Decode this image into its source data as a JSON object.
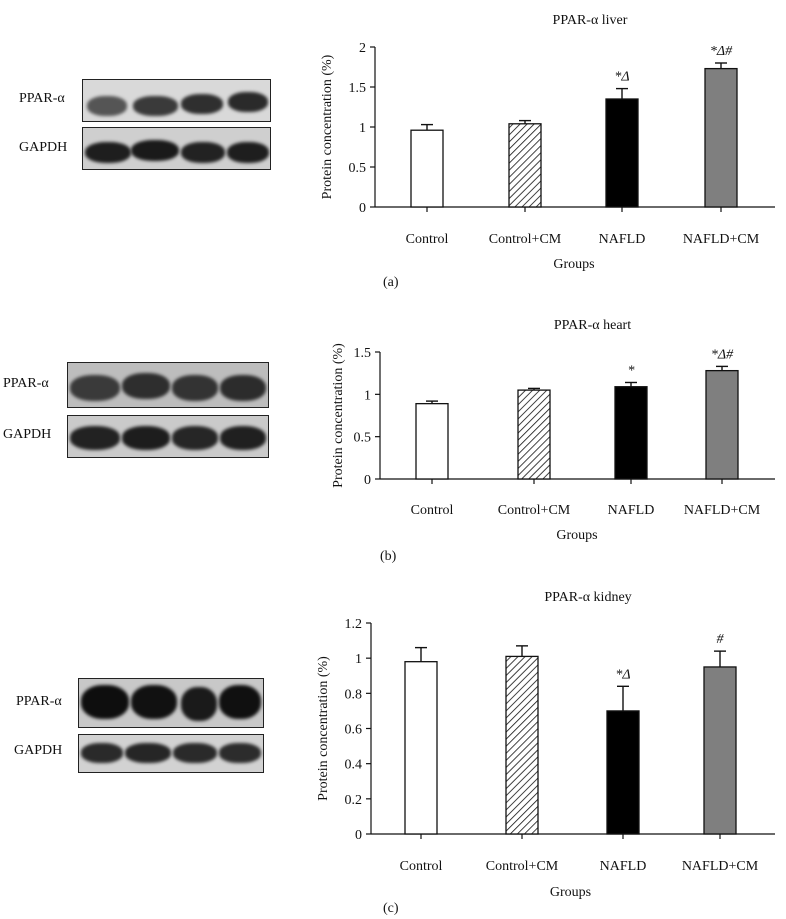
{
  "figure": {
    "panels": [
      {
        "letter": "(a)",
        "blot_labels": [
          "PPAR-α",
          "GAPDH"
        ],
        "chart_data": {
          "type": "bar",
          "title": "PPAR-α liver",
          "xlabel": "Groups",
          "ylabel": "Protein concentration (%)",
          "categories": [
            "Control",
            "Control+CM",
            "NAFLD",
            "NAFLD+CM"
          ],
          "values": [
            0.96,
            1.04,
            1.35,
            1.73
          ],
          "errors": [
            0.07,
            0.04,
            0.13,
            0.07
          ],
          "annotations": [
            "",
            "",
            "*Δ",
            "*Δ#"
          ],
          "ylim": [
            0,
            2
          ],
          "yticks": [
            0,
            0.5,
            1,
            1.5,
            2
          ],
          "ytick_labels": [
            "0",
            "0.5",
            "1",
            "1.5",
            "2"
          ],
          "bar_styles": [
            "white",
            "hatched",
            "black",
            "gray"
          ]
        }
      },
      {
        "letter": "(b)",
        "blot_labels": [
          "PPAR-α",
          "GAPDH"
        ],
        "chart_data": {
          "type": "bar",
          "title": "PPAR-α heart",
          "xlabel": "Groups",
          "ylabel": "Protein concentration (%)",
          "categories": [
            "Control",
            "Control+CM",
            "NAFLD",
            "NAFLD+CM"
          ],
          "values": [
            0.89,
            1.05,
            1.09,
            1.28
          ],
          "errors": [
            0.03,
            0.02,
            0.05,
            0.05
          ],
          "annotations": [
            "",
            "",
            "*",
            "*Δ#"
          ],
          "ylim": [
            0,
            1.5
          ],
          "yticks": [
            0,
            0.5,
            1,
            1.5
          ],
          "ytick_labels": [
            "0",
            "0.5",
            "1",
            "1.5"
          ],
          "bar_styles": [
            "white",
            "hatched",
            "black",
            "gray"
          ]
        }
      },
      {
        "letter": "(c)",
        "blot_labels": [
          "PPAR-α",
          "GAPDH"
        ],
        "chart_data": {
          "type": "bar",
          "title": "PPAR-α kidney",
          "xlabel": "Groups",
          "ylabel": "Protein concentration (%)",
          "categories": [
            "Control",
            "Control+CM",
            "NAFLD",
            "NAFLD+CM"
          ],
          "values": [
            0.98,
            1.01,
            0.7,
            0.95
          ],
          "errors": [
            0.08,
            0.06,
            0.14,
            0.09
          ],
          "annotations": [
            "",
            "",
            "*Δ",
            "#"
          ],
          "ylim": [
            0,
            1.2
          ],
          "yticks": [
            0,
            0.2,
            0.4,
            0.6,
            0.8,
            1,
            1.2
          ],
          "ytick_labels": [
            "0",
            "0.2",
            "0.4",
            "0.6",
            "0.8",
            "1",
            "1.2"
          ],
          "bar_styles": [
            "white",
            "hatched",
            "black",
            "gray"
          ]
        }
      }
    ]
  },
  "colors": {
    "black_bar": "#000000",
    "gray_bar": "#7f7f7f",
    "outline": "#111111"
  }
}
